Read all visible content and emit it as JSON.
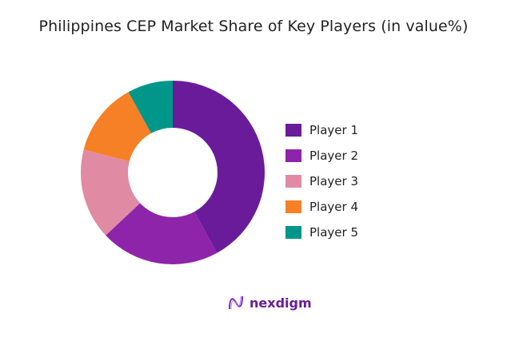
{
  "chart_data": {
    "type": "pie",
    "variant": "donut",
    "title": "Philippines CEP Market Share of Key Players (in value%)",
    "categories": [
      "Player 1",
      "Player 2",
      "Player 3",
      "Player 4",
      "Player 5"
    ],
    "values": [
      42,
      21,
      16,
      13,
      8
    ],
    "colors": [
      "#6a1b9a",
      "#8e24aa",
      "#e08aa3",
      "#f58025",
      "#00968a"
    ],
    "legend_position": "right"
  },
  "legend": {
    "items": [
      {
        "label": "Player 1",
        "color": "#6a1b9a"
      },
      {
        "label": "Player 2",
        "color": "#8e24aa"
      },
      {
        "label": "Player 3",
        "color": "#e08aa3"
      },
      {
        "label": "Player 4",
        "color": "#f58025"
      },
      {
        "label": "Player 5",
        "color": "#00968a"
      }
    ]
  },
  "logo": {
    "text": "nexdigm"
  }
}
